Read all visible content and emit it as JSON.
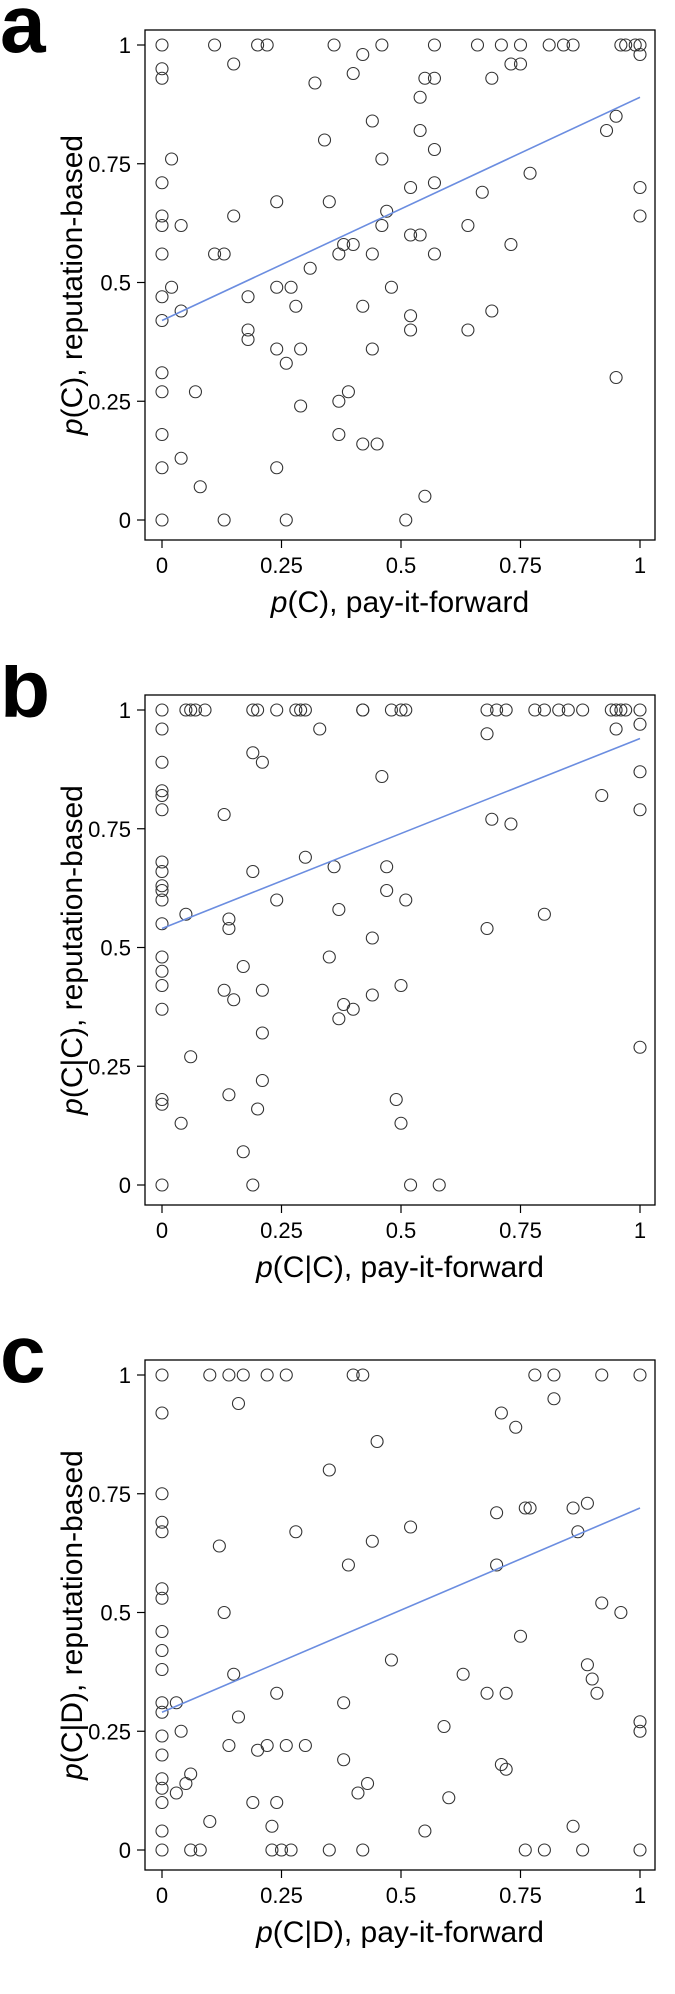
{
  "style": {
    "point_color": "#333333",
    "fit_line_color": "#6b8de0",
    "frame_color": "#000000"
  },
  "chart_data": [
    {
      "type": "scatter",
      "panel": "a",
      "title": "",
      "xlabel_p": "p",
      "xlabel_rest": "(C), pay-it-forward",
      "ylabel_p": "p",
      "ylabel_rest": "(C), reputation-based",
      "xlim": [
        0,
        1
      ],
      "ylim": [
        0,
        1
      ],
      "x_ticks": [
        "0",
        "0.25",
        "0.5",
        "0.75",
        "1"
      ],
      "y_ticks": [
        "0",
        "0.25",
        "0.5",
        "0.75",
        "1"
      ],
      "grid": false,
      "fit_line": [
        [
          0,
          0.42
        ],
        [
          1,
          0.89
        ]
      ],
      "points": [
        [
          0,
          1
        ],
        [
          0,
          0.95
        ],
        [
          0,
          0.93
        ],
        [
          0,
          0.71
        ],
        [
          0,
          0.64
        ],
        [
          0,
          0.62
        ],
        [
          0,
          0.56
        ],
        [
          0,
          0.47
        ],
        [
          0,
          0.42
        ],
        [
          0,
          0.31
        ],
        [
          0,
          0.27
        ],
        [
          0,
          0.18
        ],
        [
          0,
          0.11
        ],
        [
          0,
          0
        ],
        [
          0.02,
          0.49
        ],
        [
          0.02,
          0.76
        ],
        [
          0.04,
          0.62
        ],
        [
          0.04,
          0.44
        ],
        [
          0.04,
          0.13
        ],
        [
          0.07,
          0.27
        ],
        [
          0.08,
          0.07
        ],
        [
          0.11,
          1
        ],
        [
          0.11,
          0.56
        ],
        [
          0.13,
          0.56
        ],
        [
          0.13,
          0
        ],
        [
          0.15,
          0.96
        ],
        [
          0.15,
          0.64
        ],
        [
          0.18,
          0.47
        ],
        [
          0.18,
          0.4
        ],
        [
          0.18,
          0.38
        ],
        [
          0.2,
          1
        ],
        [
          0.22,
          1
        ],
        [
          0.24,
          0.67
        ],
        [
          0.24,
          0.49
        ],
        [
          0.24,
          0.36
        ],
        [
          0.24,
          0.11
        ],
        [
          0.26,
          0.33
        ],
        [
          0.26,
          0
        ],
        [
          0.27,
          0.49
        ],
        [
          0.28,
          0.45
        ],
        [
          0.29,
          0.36
        ],
        [
          0.29,
          0.24
        ],
        [
          0.31,
          0.53
        ],
        [
          0.32,
          0.92
        ],
        [
          0.34,
          0.8
        ],
        [
          0.35,
          0.67
        ],
        [
          0.36,
          1
        ],
        [
          0.37,
          0.56
        ],
        [
          0.37,
          0.25
        ],
        [
          0.37,
          0.18
        ],
        [
          0.38,
          0.58
        ],
        [
          0.39,
          0.27
        ],
        [
          0.4,
          0.94
        ],
        [
          0.4,
          0.58
        ],
        [
          0.42,
          0.98
        ],
        [
          0.42,
          0.45
        ],
        [
          0.42,
          0.16
        ],
        [
          0.44,
          0.84
        ],
        [
          0.44,
          0.56
        ],
        [
          0.44,
          0.36
        ],
        [
          0.45,
          0.16
        ],
        [
          0.46,
          1
        ],
        [
          0.46,
          0.76
        ],
        [
          0.47,
          0.65
        ],
        [
          0.46,
          0.62
        ],
        [
          0.48,
          0.49
        ],
        [
          0.51,
          0
        ],
        [
          0.52,
          0.7
        ],
        [
          0.52,
          0.6
        ],
        [
          0.52,
          0.43
        ],
        [
          0.52,
          0.4
        ],
        [
          0.54,
          0.89
        ],
        [
          0.54,
          0.82
        ],
        [
          0.54,
          0.6
        ],
        [
          0.55,
          0.05
        ],
        [
          0.55,
          0.93
        ],
        [
          0.57,
          1
        ],
        [
          0.57,
          0.93
        ],
        [
          0.57,
          0.78
        ],
        [
          0.57,
          0.71
        ],
        [
          0.57,
          0.56
        ],
        [
          0.66,
          1
        ],
        [
          0.64,
          0.62
        ],
        [
          0.64,
          0.4
        ],
        [
          0.67,
          0.69
        ],
        [
          0.69,
          0.93
        ],
        [
          0.69,
          0.44
        ],
        [
          0.71,
          1
        ],
        [
          0.73,
          0.96
        ],
        [
          0.73,
          0.58
        ],
        [
          0.75,
          0.96
        ],
        [
          0.75,
          1
        ],
        [
          0.77,
          0.73
        ],
        [
          0.81,
          1
        ],
        [
          0.84,
          1
        ],
        [
          0.86,
          1
        ],
        [
          0.93,
          0.82
        ],
        [
          0.95,
          0.85
        ],
        [
          0.95,
          0.3
        ],
        [
          0.96,
          1
        ],
        [
          0.97,
          1
        ],
        [
          0.99,
          1
        ],
        [
          1,
          1
        ],
        [
          1,
          0.98
        ],
        [
          1,
          0.7
        ],
        [
          1,
          0.64
        ]
      ]
    },
    {
      "type": "scatter",
      "panel": "b",
      "title": "",
      "xlabel_p": "p",
      "xlabel_rest": "(C|C), pay-it-forward",
      "ylabel_p": "p",
      "ylabel_rest": "(C|C), reputation-based",
      "xlim": [
        0,
        1
      ],
      "ylim": [
        0,
        1
      ],
      "x_ticks": [
        "0",
        "0.25",
        "0.5",
        "0.75",
        "1"
      ],
      "y_ticks": [
        "0",
        "0.25",
        "0.5",
        "0.75",
        "1"
      ],
      "grid": false,
      "fit_line": [
        [
          0,
          0.54
        ],
        [
          1,
          0.94
        ]
      ],
      "points": [
        [
          0,
          1
        ],
        [
          0,
          0.96
        ],
        [
          0,
          0.89
        ],
        [
          0,
          0.83
        ],
        [
          0,
          0.82
        ],
        [
          0,
          0.79
        ],
        [
          0,
          0.68
        ],
        [
          0,
          0.66
        ],
        [
          0,
          0.63
        ],
        [
          0,
          0.62
        ],
        [
          0,
          0.6
        ],
        [
          0,
          0.55
        ],
        [
          0,
          0.48
        ],
        [
          0,
          0.45
        ],
        [
          0,
          0.42
        ],
        [
          0,
          0.37
        ],
        [
          0,
          0.18
        ],
        [
          0,
          0.17
        ],
        [
          0,
          0
        ],
        [
          0.05,
          1
        ],
        [
          0.06,
          1
        ],
        [
          0.07,
          1
        ],
        [
          0.09,
          1
        ],
        [
          0.05,
          0.57
        ],
        [
          0.06,
          0.27
        ],
        [
          0.04,
          0.13
        ],
        [
          0.13,
          0.78
        ],
        [
          0.14,
          0.56
        ],
        [
          0.14,
          0.54
        ],
        [
          0.15,
          0.39
        ],
        [
          0.13,
          0.41
        ],
        [
          0.14,
          0.19
        ],
        [
          0.17,
          0.46
        ],
        [
          0.17,
          0.07
        ],
        [
          0.19,
          1
        ],
        [
          0.2,
          1
        ],
        [
          0.19,
          0.91
        ],
        [
          0.19,
          0.66
        ],
        [
          0.19,
          0
        ],
        [
          0.2,
          0.16
        ],
        [
          0.21,
          0.89
        ],
        [
          0.21,
          0.41
        ],
        [
          0.21,
          0.32
        ],
        [
          0.21,
          0.22
        ],
        [
          0.24,
          1
        ],
        [
          0.24,
          0.6
        ],
        [
          0.28,
          1
        ],
        [
          0.29,
          1
        ],
        [
          0.3,
          1
        ],
        [
          0.3,
          0.69
        ],
        [
          0.33,
          0.96
        ],
        [
          0.35,
          0.48
        ],
        [
          0.36,
          0.67
        ],
        [
          0.37,
          0.58
        ],
        [
          0.38,
          0.38
        ],
        [
          0.37,
          0.35
        ],
        [
          0.4,
          0.37
        ],
        [
          0.42,
          1
        ],
        [
          0.42,
          1
        ],
        [
          0.44,
          0.52
        ],
        [
          0.44,
          0.4
        ],
        [
          0.46,
          0.86
        ],
        [
          0.47,
          0.67
        ],
        [
          0.47,
          0.62
        ],
        [
          0.48,
          1
        ],
        [
          0.49,
          0.18
        ],
        [
          0.5,
          1
        ],
        [
          0.51,
          1
        ],
        [
          0.5,
          0.42
        ],
        [
          0.5,
          0.13
        ],
        [
          0.51,
          0.6
        ],
        [
          0.52,
          0
        ],
        [
          0.58,
          0
        ],
        [
          0.68,
          0.95
        ],
        [
          0.68,
          1
        ],
        [
          0.7,
          1
        ],
        [
          0.72,
          1
        ],
        [
          0.68,
          0.54
        ],
        [
          0.69,
          0.77
        ],
        [
          0.73,
          0.76
        ],
        [
          0.78,
          1
        ],
        [
          0.8,
          1
        ],
        [
          0.83,
          1
        ],
        [
          0.85,
          1
        ],
        [
          0.8,
          0.57
        ],
        [
          0.88,
          1
        ],
        [
          0.92,
          0.82
        ],
        [
          0.94,
          1
        ],
        [
          0.95,
          1
        ],
        [
          0.96,
          1
        ],
        [
          0.97,
          1
        ],
        [
          0.95,
          0.96
        ],
        [
          1,
          1
        ],
        [
          1,
          0.97
        ],
        [
          1,
          0.87
        ],
        [
          1,
          0.79
        ],
        [
          1,
          0.29
        ]
      ]
    },
    {
      "type": "scatter",
      "panel": "c",
      "title": "",
      "xlabel_p": "p",
      "xlabel_rest": "(C|D), pay-it-forward",
      "ylabel_p": "p",
      "ylabel_rest": "(C|D), reputation-based",
      "xlim": [
        0,
        1
      ],
      "ylim": [
        0,
        1
      ],
      "x_ticks": [
        "0",
        "0.25",
        "0.5",
        "0.75",
        "1"
      ],
      "y_ticks": [
        "0",
        "0.25",
        "0.5",
        "0.75",
        "1"
      ],
      "grid": false,
      "fit_line": [
        [
          0,
          0.29
        ],
        [
          1,
          0.72
        ]
      ],
      "points": [
        [
          0,
          1
        ],
        [
          0,
          0.92
        ],
        [
          0,
          0.75
        ],
        [
          0,
          0.69
        ],
        [
          0,
          0.67
        ],
        [
          0,
          0.55
        ],
        [
          0,
          0.53
        ],
        [
          0,
          0.46
        ],
        [
          0,
          0.42
        ],
        [
          0,
          0.38
        ],
        [
          0,
          0.31
        ],
        [
          0,
          0.29
        ],
        [
          0,
          0.24
        ],
        [
          0,
          0.2
        ],
        [
          0,
          0.15
        ],
        [
          0,
          0.13
        ],
        [
          0,
          0.1
        ],
        [
          0,
          0.04
        ],
        [
          0,
          0
        ],
        [
          0.03,
          0.31
        ],
        [
          0.03,
          0.12
        ],
        [
          0.04,
          0.25
        ],
        [
          0.05,
          0.14
        ],
        [
          0.06,
          0.16
        ],
        [
          0.06,
          0
        ],
        [
          0.08,
          0
        ],
        [
          0.1,
          1
        ],
        [
          0.1,
          0.06
        ],
        [
          0.12,
          0.64
        ],
        [
          0.13,
          0.5
        ],
        [
          0.14,
          1
        ],
        [
          0.14,
          0.22
        ],
        [
          0.15,
          0.37
        ],
        [
          0.16,
          0.94
        ],
        [
          0.16,
          0.28
        ],
        [
          0.17,
          1
        ],
        [
          0.19,
          0.1
        ],
        [
          0.2,
          0.21
        ],
        [
          0.22,
          1
        ],
        [
          0.22,
          0.22
        ],
        [
          0.23,
          0.05
        ],
        [
          0.23,
          0
        ],
        [
          0.24,
          0.1
        ],
        [
          0.24,
          0.33
        ],
        [
          0.25,
          0
        ],
        [
          0.26,
          1
        ],
        [
          0.26,
          0.22
        ],
        [
          0.27,
          0
        ],
        [
          0.28,
          0.67
        ],
        [
          0.3,
          0.22
        ],
        [
          0.35,
          0.8
        ],
        [
          0.35,
          0
        ],
        [
          0.38,
          0.19
        ],
        [
          0.38,
          0.31
        ],
        [
          0.39,
          0.6
        ],
        [
          0.4,
          1
        ],
        [
          0.41,
          0.12
        ],
        [
          0.42,
          0
        ],
        [
          0.42,
          1
        ],
        [
          0.43,
          0.14
        ],
        [
          0.44,
          0.65
        ],
        [
          0.45,
          0.86
        ],
        [
          0.48,
          0.4
        ],
        [
          0.52,
          0.68
        ],
        [
          0.55,
          0.04
        ],
        [
          0.59,
          0.26
        ],
        [
          0.6,
          0.11
        ],
        [
          0.63,
          0.37
        ],
        [
          0.68,
          0.33
        ],
        [
          0.7,
          0.71
        ],
        [
          0.7,
          0.6
        ],
        [
          0.71,
          0.92
        ],
        [
          0.71,
          0.18
        ],
        [
          0.72,
          0.17
        ],
        [
          0.72,
          0.33
        ],
        [
          0.74,
          0.89
        ],
        [
          0.75,
          0.45
        ],
        [
          0.76,
          0.72
        ],
        [
          0.77,
          0.72
        ],
        [
          0.76,
          0
        ],
        [
          0.78,
          1
        ],
        [
          0.82,
          1
        ],
        [
          0.82,
          0.95
        ],
        [
          0.8,
          0
        ],
        [
          0.86,
          0.05
        ],
        [
          0.86,
          0.72
        ],
        [
          0.87,
          0.67
        ],
        [
          0.88,
          0
        ],
        [
          0.89,
          0.73
        ],
        [
          0.89,
          0.39
        ],
        [
          0.9,
          0.36
        ],
        [
          0.91,
          0.33
        ],
        [
          0.92,
          0.52
        ],
        [
          0.92,
          1
        ],
        [
          0.96,
          0.5
        ],
        [
          1,
          1
        ],
        [
          1,
          0.27
        ],
        [
          1,
          0.25
        ],
        [
          1,
          0
        ]
      ]
    }
  ]
}
